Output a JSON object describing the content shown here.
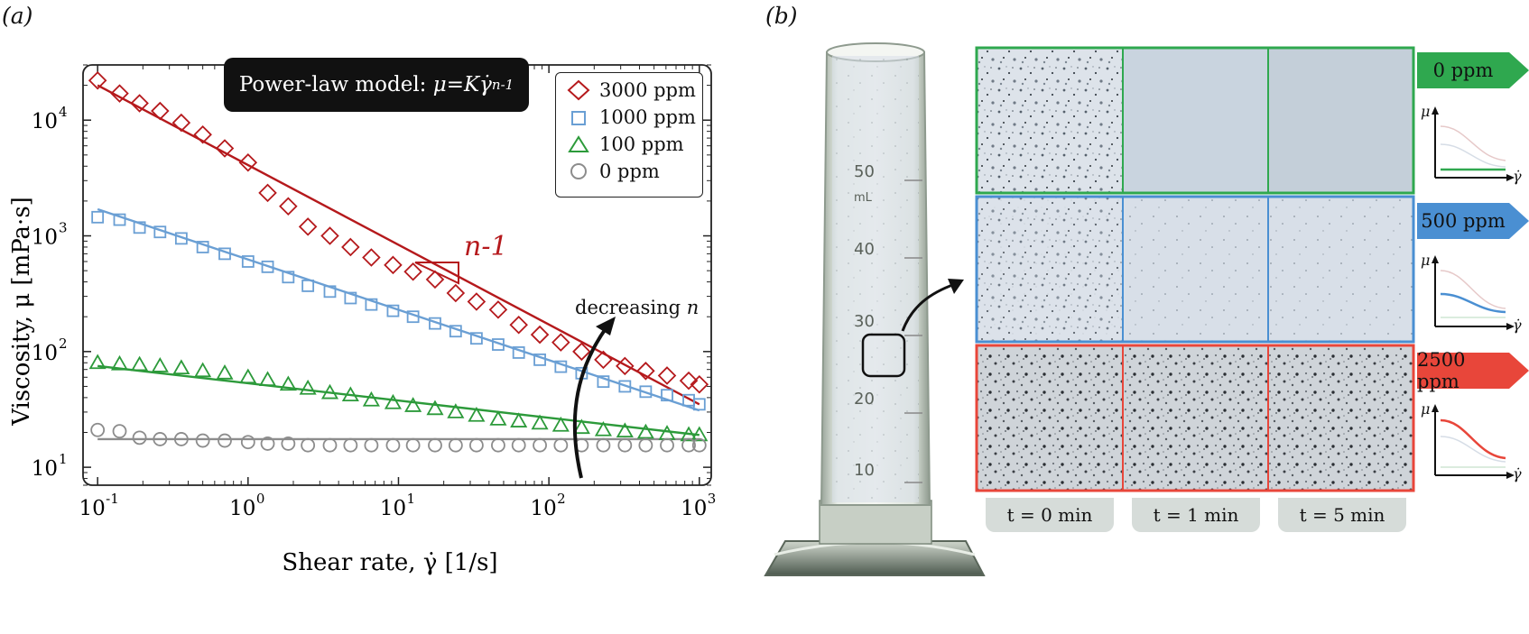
{
  "panel_a": {
    "label": "(a)",
    "model_label_prefix": "Power-law model: ",
    "model_label_formula": "μ=Kγ̇",
    "model_label_exponent": "n-1",
    "slope_label": "n-1",
    "trend_label_prefix": "decreasing ",
    "trend_label_var": "n",
    "legend": [
      {
        "name": "3000 ppm",
        "marker": "diamond",
        "color": "#b5191c"
      },
      {
        "name": "1000 ppm",
        "marker": "square",
        "color": "#6a9fd4"
      },
      {
        "name": "100 ppm",
        "marker": "triangle",
        "color": "#2c9a3a"
      },
      {
        "name": "0 ppm",
        "marker": "circle",
        "color": "#8c8c8c"
      }
    ]
  },
  "chart_data": {
    "type": "scatter",
    "xlabel": "Shear rate, γ̇ [1/s]",
    "ylabel": "Viscosity, μ [mPa·s]",
    "xscale": "log",
    "yscale": "log",
    "xlim": [
      0.08,
      1200
    ],
    "ylim": [
      7,
      30000
    ],
    "x_ticks": [
      0.1,
      1,
      10,
      100,
      1000
    ],
    "x_tick_labels": [
      "10",
      "10",
      "10",
      "10",
      "10"
    ],
    "x_tick_exps": [
      "-1",
      "0",
      "1",
      "2",
      "3"
    ],
    "y_ticks": [
      10,
      100,
      1000,
      10000
    ],
    "y_tick_labels": [
      "10",
      "10",
      "10",
      "10"
    ],
    "y_tick_exps": [
      "1",
      "2",
      "3",
      "4"
    ],
    "grid": false,
    "legend_position": "top-right",
    "series": [
      {
        "name": "3000 ppm",
        "color": "#b5191c",
        "marker": "diamond",
        "x": [
          0.1,
          0.14,
          0.19,
          0.26,
          0.36,
          0.5,
          0.7,
          1.0,
          1.35,
          1.85,
          2.5,
          3.5,
          4.8,
          6.6,
          9.2,
          12.5,
          17.5,
          24,
          33,
          46,
          63,
          87,
          120,
          165,
          230,
          320,
          440,
          610,
          850,
          1000
        ],
        "y": [
          22000,
          17000,
          14000,
          12000,
          9500,
          7500,
          5700,
          4300,
          2350,
          1800,
          1200,
          1000,
          800,
          650,
          560,
          490,
          420,
          320,
          270,
          230,
          170,
          140,
          120,
          100,
          85,
          75,
          68,
          62,
          56,
          52
        ],
        "fit": {
          "x": [
            0.1,
            1000
          ],
          "y": [
            20000,
            35
          ]
        }
      },
      {
        "name": "1000 ppm",
        "color": "#6a9fd4",
        "marker": "square",
        "x": [
          0.1,
          0.14,
          0.19,
          0.26,
          0.36,
          0.5,
          0.7,
          1.0,
          1.35,
          1.85,
          2.5,
          3.5,
          4.8,
          6.6,
          9.2,
          12.5,
          17.5,
          24,
          33,
          46,
          63,
          87,
          120,
          165,
          230,
          320,
          440,
          610,
          850,
          1000
        ],
        "y": [
          1450,
          1380,
          1180,
          1080,
          950,
          800,
          700,
          600,
          540,
          440,
          370,
          330,
          290,
          255,
          225,
          200,
          175,
          150,
          130,
          115,
          98,
          85,
          74,
          65,
          55,
          50,
          45,
          42,
          38,
          35
        ],
        "fit": {
          "x": [
            0.1,
            1000
          ],
          "y": [
            1700,
            31
          ]
        }
      },
      {
        "name": "100 ppm",
        "color": "#2c9a3a",
        "marker": "triangle",
        "x": [
          0.1,
          0.14,
          0.19,
          0.26,
          0.36,
          0.5,
          0.7,
          1.0,
          1.35,
          1.85,
          2.5,
          3.5,
          4.8,
          6.6,
          9.2,
          12.5,
          17.5,
          24,
          33,
          46,
          63,
          87,
          120,
          165,
          230,
          320,
          440,
          610,
          850,
          1000
        ],
        "y": [
          80,
          78,
          77,
          75,
          72,
          68,
          65,
          60,
          57,
          52,
          48,
          44,
          42,
          38,
          36,
          34,
          32,
          30,
          28,
          26,
          25,
          24,
          23,
          22,
          21,
          20.5,
          20,
          19.5,
          19,
          19
        ],
        "fit": {
          "x": [
            0.1,
            1000
          ],
          "y": [
            75,
            19
          ]
        }
      },
      {
        "name": "0 ppm",
        "color": "#8c8c8c",
        "marker": "circle",
        "x": [
          0.1,
          0.14,
          0.19,
          0.26,
          0.36,
          0.5,
          0.7,
          1.0,
          1.35,
          1.85,
          2.5,
          3.5,
          4.8,
          6.6,
          9.2,
          12.5,
          17.5,
          24,
          33,
          46,
          63,
          87,
          120,
          165,
          230,
          320,
          440,
          610,
          850,
          1000
        ],
        "y": [
          21,
          20.5,
          18,
          17.5,
          17.5,
          17,
          17,
          16.5,
          16,
          16,
          15.5,
          15.5,
          15.5,
          15.5,
          15.5,
          15.5,
          15.5,
          15.5,
          15.5,
          15.5,
          15.5,
          15.5,
          15.5,
          15.5,
          15.5,
          15.5,
          15.5,
          15.5,
          15.5,
          15.5
        ],
        "fit": {
          "x": [
            0.1,
            1000
          ],
          "y": [
            17.5,
            17.5
          ]
        }
      }
    ]
  },
  "panel_b": {
    "label": "(b)",
    "cylinder_marks": [
      "50",
      "mL",
      "40",
      "30",
      "20",
      "10"
    ],
    "rows": [
      {
        "label": "0 ppm",
        "color": "#2fa84f",
        "tab_color": "#2fa84f"
      },
      {
        "label": "500 ppm",
        "color": "#4a8fd2",
        "tab_color": "#4a8fd2"
      },
      {
        "label": "2500 ppm",
        "color": "#e8463a",
        "tab_color": "#e8463a"
      }
    ],
    "times": [
      "t = 0 min",
      "t = 1 min",
      "t = 5 min"
    ],
    "mini_axis_y": "μ",
    "mini_axis_x": "γ̇"
  }
}
